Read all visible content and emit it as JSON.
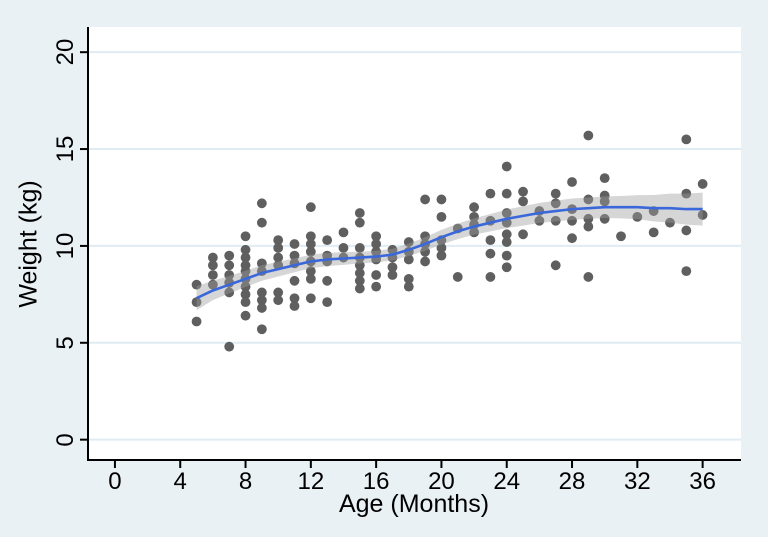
{
  "figure": {
    "x_tick_labels": [
      "0",
      "4",
      "8",
      "12",
      "16",
      "20",
      "24",
      "28",
      "32",
      "36"
    ],
    "y_tick_labels": [
      "0",
      "5",
      "10",
      "15",
      "20"
    ]
  },
  "colors": {
    "background": "#e9f1f5",
    "plot_background": "#ffffff",
    "gridline": "#e0ecf4",
    "axis": "#000000",
    "marker": "#5f5f5f",
    "lowess_line": "#3a67d9",
    "ci_band": "rgba(158,158,158,0.42)"
  },
  "chart_data": {
    "type": "scatter",
    "title": "",
    "xlabel": "Age (Months)",
    "ylabel": "Weight (kg)",
    "xlim": [
      -1.65,
      38.35
    ],
    "ylim": [
      -1.05,
      21.3
    ],
    "x_ticks": [
      0,
      4,
      8,
      12,
      16,
      20,
      24,
      28,
      32,
      36
    ],
    "y_ticks": [
      0,
      5,
      10,
      15,
      20
    ],
    "grid": true,
    "legend": "none",
    "points": [
      [
        5,
        8.0
      ],
      [
        5,
        7.1
      ],
      [
        5,
        6.1
      ],
      [
        6,
        9.4
      ],
      [
        6,
        9.0
      ],
      [
        6,
        8.5
      ],
      [
        6,
        8.0
      ],
      [
        7,
        9.5
      ],
      [
        7,
        9.0
      ],
      [
        7,
        8.5
      ],
      [
        7,
        8.1
      ],
      [
        7,
        7.6
      ],
      [
        7,
        4.8
      ],
      [
        8,
        10.5
      ],
      [
        8,
        9.8
      ],
      [
        8,
        9.4
      ],
      [
        8,
        9.0
      ],
      [
        8,
        8.7
      ],
      [
        8,
        8.3
      ],
      [
        8,
        7.9
      ],
      [
        8,
        7.5
      ],
      [
        8,
        7.1
      ],
      [
        8,
        6.4
      ],
      [
        9,
        12.2
      ],
      [
        9,
        11.2
      ],
      [
        9,
        9.1
      ],
      [
        9,
        8.7
      ],
      [
        9,
        7.6
      ],
      [
        9,
        7.2
      ],
      [
        9,
        6.8
      ],
      [
        9,
        5.7
      ],
      [
        10,
        10.3
      ],
      [
        10,
        9.9
      ],
      [
        10,
        9.4
      ],
      [
        10,
        9.0
      ],
      [
        10,
        7.6
      ],
      [
        10,
        7.2
      ],
      [
        11,
        10.1
      ],
      [
        11,
        9.5
      ],
      [
        11,
        9.1
      ],
      [
        11,
        8.2
      ],
      [
        11,
        7.3
      ],
      [
        11,
        6.9
      ],
      [
        12,
        12.0
      ],
      [
        12,
        10.5
      ],
      [
        12,
        10.1
      ],
      [
        12,
        9.7
      ],
      [
        12,
        9.2
      ],
      [
        12,
        8.7
      ],
      [
        12,
        8.3
      ],
      [
        12,
        7.3
      ],
      [
        13,
        10.3
      ],
      [
        13,
        9.5
      ],
      [
        13,
        9.2
      ],
      [
        13,
        8.2
      ],
      [
        13,
        7.1
      ],
      [
        14,
        10.7
      ],
      [
        14,
        9.9
      ],
      [
        14,
        9.4
      ],
      [
        15,
        11.7
      ],
      [
        15,
        11.2
      ],
      [
        15,
        9.9
      ],
      [
        15,
        9.4
      ],
      [
        15,
        9.0
      ],
      [
        15,
        8.6
      ],
      [
        15,
        8.2
      ],
      [
        15,
        7.8
      ],
      [
        16,
        10.5
      ],
      [
        16,
        10.1
      ],
      [
        16,
        9.7
      ],
      [
        16,
        9.3
      ],
      [
        16,
        8.5
      ],
      [
        16,
        7.9
      ],
      [
        17,
        9.8
      ],
      [
        17,
        9.4
      ],
      [
        17,
        8.9
      ],
      [
        17,
        8.5
      ],
      [
        18,
        10.2
      ],
      [
        18,
        9.7
      ],
      [
        18,
        9.3
      ],
      [
        18,
        8.3
      ],
      [
        18,
        7.9
      ],
      [
        19,
        12.4
      ],
      [
        19,
        10.5
      ],
      [
        19,
        10.1
      ],
      [
        19,
        9.7
      ],
      [
        19,
        9.2
      ],
      [
        20,
        12.4
      ],
      [
        20,
        11.5
      ],
      [
        20,
        10.3
      ],
      [
        20,
        9.9
      ],
      [
        20,
        9.5
      ],
      [
        21,
        10.9
      ],
      [
        21,
        8.4
      ],
      [
        22,
        12.0
      ],
      [
        22,
        11.5
      ],
      [
        22,
        11.1
      ],
      [
        22,
        10.7
      ],
      [
        23,
        12.7
      ],
      [
        23,
        11.3
      ],
      [
        23,
        10.3
      ],
      [
        23,
        9.6
      ],
      [
        23,
        8.4
      ],
      [
        24,
        14.1
      ],
      [
        24,
        12.7
      ],
      [
        24,
        11.7
      ],
      [
        24,
        11.2
      ],
      [
        24,
        10.6
      ],
      [
        24,
        10.2
      ],
      [
        24,
        9.5
      ],
      [
        24,
        8.9
      ],
      [
        25,
        12.8
      ],
      [
        25,
        12.3
      ],
      [
        25,
        10.6
      ],
      [
        26,
        11.8
      ],
      [
        26,
        11.3
      ],
      [
        27,
        12.7
      ],
      [
        27,
        12.2
      ],
      [
        27,
        11.3
      ],
      [
        27,
        9.0
      ],
      [
        28,
        13.3
      ],
      [
        28,
        11.9
      ],
      [
        28,
        11.3
      ],
      [
        28,
        10.4
      ],
      [
        29,
        15.7
      ],
      [
        29,
        12.4
      ],
      [
        29,
        11.4
      ],
      [
        29,
        11.0
      ],
      [
        29,
        8.4
      ],
      [
        30,
        13.5
      ],
      [
        30,
        12.6
      ],
      [
        30,
        12.3
      ],
      [
        30,
        11.4
      ],
      [
        31,
        10.5
      ],
      [
        32,
        11.5
      ],
      [
        33,
        11.8
      ],
      [
        33,
        10.7
      ],
      [
        34,
        11.2
      ],
      [
        35,
        15.5
      ],
      [
        35,
        12.7
      ],
      [
        35,
        10.8
      ],
      [
        35,
        8.7
      ],
      [
        36,
        13.2
      ],
      [
        36,
        11.6
      ]
    ],
    "lowess": {
      "x": [
        5,
        6,
        7,
        8,
        9,
        10,
        11,
        12,
        13,
        14,
        15,
        16,
        17,
        18,
        19,
        20,
        21,
        22,
        23,
        24,
        25,
        26,
        27,
        28,
        29,
        30,
        31,
        32,
        33,
        34,
        35,
        36
      ],
      "y": [
        7.3,
        7.7,
        8.0,
        8.3,
        8.6,
        8.8,
        9.0,
        9.2,
        9.3,
        9.35,
        9.4,
        9.45,
        9.55,
        9.8,
        10.1,
        10.45,
        10.75,
        11.0,
        11.2,
        11.4,
        11.55,
        11.7,
        11.8,
        11.9,
        11.95,
        12.0,
        12.0,
        12.0,
        11.95,
        11.95,
        11.9,
        11.9
      ],
      "ci_halfwidth": [
        0.62,
        0.5,
        0.45,
        0.42,
        0.4,
        0.38,
        0.36,
        0.35,
        0.34,
        0.33,
        0.3,
        0.3,
        0.3,
        0.32,
        0.35,
        0.38,
        0.4,
        0.42,
        0.45,
        0.48,
        0.5,
        0.52,
        0.54,
        0.55,
        0.55,
        0.56,
        0.58,
        0.62,
        0.68,
        0.75,
        0.8,
        0.85
      ]
    }
  }
}
